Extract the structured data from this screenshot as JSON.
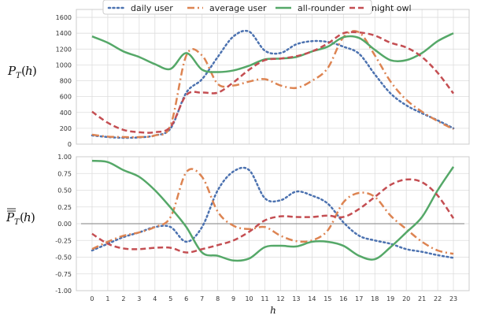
{
  "legend": [
    "daily user",
    "average user",
    "all-rounder",
    "night owl"
  ],
  "chart_data": [
    {
      "type": "line",
      "ylabel": "P_T(h)",
      "xlabel": "",
      "x": [
        0,
        1,
        2,
        3,
        4,
        5,
        6,
        7,
        8,
        9,
        10,
        11,
        12,
        13,
        14,
        15,
        16,
        17,
        18,
        19,
        20,
        21,
        22,
        23
      ],
      "xlim": [
        -1,
        24
      ],
      "ylim": [
        0,
        1700
      ],
      "yticks": [
        0,
        200,
        400,
        600,
        800,
        1000,
        1200,
        1400,
        1600
      ],
      "grid": true,
      "legend_position": "top-center",
      "series": [
        {
          "name": "daily user",
          "color": "#4c72b0",
          "dash": "2,3.5",
          "values": [
            110,
            90,
            80,
            85,
            110,
            200,
            650,
            820,
            1100,
            1360,
            1420,
            1180,
            1150,
            1260,
            1300,
            1290,
            1230,
            1140,
            880,
            640,
            490,
            390,
            300,
            200
          ]
        },
        {
          "name": "average user",
          "color": "#dd8452",
          "dash": "9,4,2,4",
          "values": [
            120,
            95,
            90,
            90,
            110,
            240,
            1120,
            1120,
            760,
            740,
            790,
            820,
            740,
            710,
            800,
            960,
            1350,
            1410,
            1120,
            790,
            560,
            410,
            290,
            190
          ]
        },
        {
          "name": "all-rounder",
          "color": "#55a868",
          "dash": "",
          "values": [
            1360,
            1280,
            1170,
            1100,
            1010,
            950,
            1150,
            940,
            910,
            930,
            990,
            1070,
            1080,
            1100,
            1170,
            1230,
            1350,
            1340,
            1190,
            1060,
            1060,
            1150,
            1300,
            1400
          ]
        },
        {
          "name": "night owl",
          "color": "#c44e52",
          "dash": "7,4",
          "values": [
            410,
            270,
            180,
            150,
            150,
            220,
            620,
            650,
            650,
            780,
            940,
            1060,
            1080,
            1110,
            1170,
            1270,
            1400,
            1410,
            1370,
            1280,
            1220,
            1100,
            900,
            640
          ]
        }
      ]
    },
    {
      "type": "line",
      "ylabel": "P_T(h)",
      "xlabel": "h",
      "x": [
        0,
        1,
        2,
        3,
        4,
        5,
        6,
        7,
        8,
        9,
        10,
        11,
        12,
        13,
        14,
        15,
        16,
        17,
        18,
        19,
        20,
        21,
        22,
        23
      ],
      "xlim": [
        -1,
        24
      ],
      "ylim": [
        -1.0,
        1.0
      ],
      "yticks": [
        -1.0,
        -0.75,
        -0.5,
        -0.25,
        0.0,
        0.25,
        0.5,
        0.75,
        1.0
      ],
      "xticks": [
        "0",
        "1",
        "2",
        "3",
        "4",
        "5",
        "6",
        "7",
        "8",
        "9",
        "10",
        "11",
        "12",
        "13",
        "14",
        "15",
        "16",
        "17",
        "18",
        "19",
        "20",
        "21",
        "22",
        "23"
      ],
      "grid": true,
      "zero_line": true,
      "series": [
        {
          "name": "daily user",
          "color": "#4c72b0",
          "dash": "2,3.5",
          "values": [
            -0.4,
            -0.3,
            -0.2,
            -0.13,
            -0.05,
            -0.05,
            -0.27,
            -0.05,
            0.5,
            0.78,
            0.8,
            0.38,
            0.35,
            0.48,
            0.42,
            0.3,
            0.02,
            -0.18,
            -0.25,
            -0.3,
            -0.38,
            -0.42,
            -0.47,
            -0.51
          ]
        },
        {
          "name": "average user",
          "color": "#dd8452",
          "dash": "9,4,2,4",
          "values": [
            -0.38,
            -0.27,
            -0.18,
            -0.13,
            -0.05,
            0.1,
            0.77,
            0.7,
            0.18,
            -0.03,
            -0.08,
            -0.05,
            -0.18,
            -0.26,
            -0.25,
            -0.1,
            0.32,
            0.46,
            0.4,
            0.12,
            -0.08,
            -0.27,
            -0.4,
            -0.45
          ]
        },
        {
          "name": "all-rounder",
          "color": "#55a868",
          "dash": "",
          "values": [
            0.94,
            0.92,
            0.8,
            0.7,
            0.5,
            0.24,
            -0.05,
            -0.43,
            -0.48,
            -0.55,
            -0.52,
            -0.35,
            -0.33,
            -0.34,
            -0.27,
            -0.27,
            -0.33,
            -0.48,
            -0.53,
            -0.35,
            -0.13,
            0.1,
            0.5,
            0.85
          ]
        },
        {
          "name": "night owl",
          "color": "#c44e52",
          "dash": "7,4",
          "values": [
            -0.15,
            -0.3,
            -0.37,
            -0.38,
            -0.36,
            -0.36,
            -0.43,
            -0.38,
            -0.32,
            -0.25,
            -0.12,
            0.05,
            0.11,
            0.1,
            0.1,
            0.12,
            0.1,
            0.22,
            0.4,
            0.58,
            0.66,
            0.62,
            0.42,
            0.08
          ]
        }
      ]
    }
  ]
}
